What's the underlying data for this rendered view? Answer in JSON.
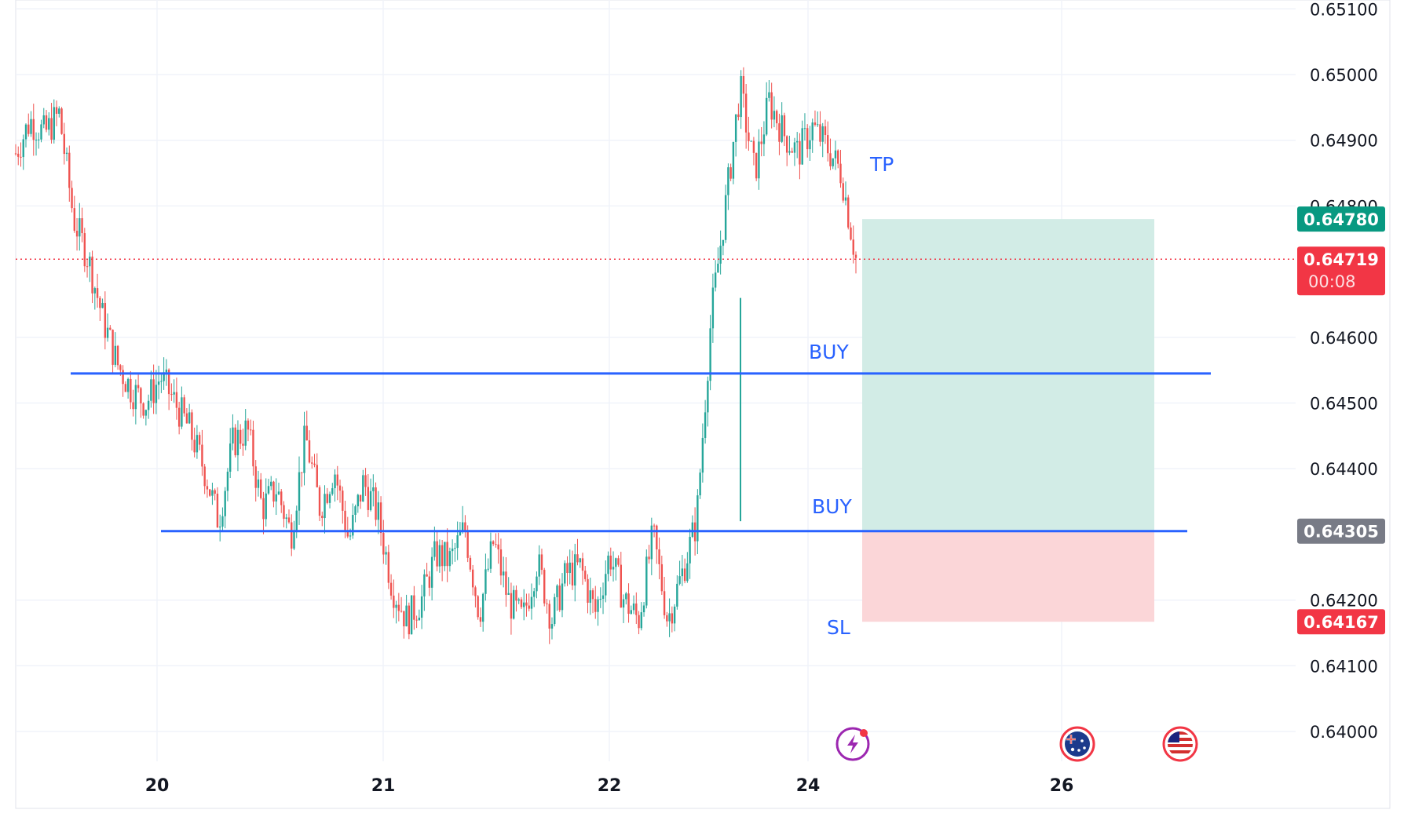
{
  "chart_data": {
    "type": "candlestick",
    "y_axis": {
      "min": 0.6396,
      "max": 0.6512,
      "ticks": [
        "0.65100",
        "0.65000",
        "0.64900",
        "0.64800",
        "0.64600",
        "0.64500",
        "0.64400",
        "0.64200",
        "0.64100",
        "0.64000"
      ]
    },
    "x_axis": {
      "tick_labels": [
        "20",
        "21",
        "22",
        "24",
        "26"
      ]
    },
    "current_price": {
      "value": 0.64719,
      "label": "0.64719",
      "countdown": "00:08"
    },
    "position": {
      "tp_price": 0.6478,
      "tp_label": "0.64780",
      "entry_price": 0.64305,
      "entry_label": "0.64305",
      "sl_price": 0.64167,
      "sl_label": "0.64167"
    },
    "horizontal_lines": [
      {
        "price": 0.64545
      },
      {
        "price": 0.64305
      }
    ],
    "annotations": {
      "tp": "TP",
      "buy_upper": "BUY",
      "buy_lower": "BUY",
      "sl": "SL"
    },
    "price_path_anchors": [
      0.6488,
      0.6493,
      0.6491,
      0.6494,
      0.6478,
      0.6472,
      0.6463,
      0.6456,
      0.6452,
      0.645,
      0.6454,
      0.645,
      0.6446,
      0.644,
      0.6432,
      0.6444,
      0.6446,
      0.6434,
      0.6437,
      0.643,
      0.6445,
      0.6434,
      0.644,
      0.6429,
      0.6438,
      0.6433,
      0.6422,
      0.6417,
      0.642,
      0.6427,
      0.6426,
      0.6431,
      0.6418,
      0.6429,
      0.642,
      0.6417,
      0.6426,
      0.6417,
      0.6424,
      0.6425,
      0.6418,
      0.6427,
      0.642,
      0.6417,
      0.643,
      0.6417,
      0.6424,
      0.6432,
      0.6463,
      0.648,
      0.6498,
      0.6485,
      0.6496,
      0.6491,
      0.6488,
      0.6492,
      0.6489,
      0.6485,
      0.6472
    ],
    "colors": {
      "up": "#26a69a",
      "down": "#ef5350",
      "line": "#2962ff",
      "profit_zone": "#d2ece6",
      "loss_zone": "#fbd6d8",
      "tp_tag": "#089981",
      "current_tag": "#f23645",
      "entry_tag": "#787b86",
      "sl_tag": "#f23645"
    },
    "icons": [
      "lightning-event-icon",
      "australia-flag-icon",
      "usa-flag-icon"
    ]
  }
}
